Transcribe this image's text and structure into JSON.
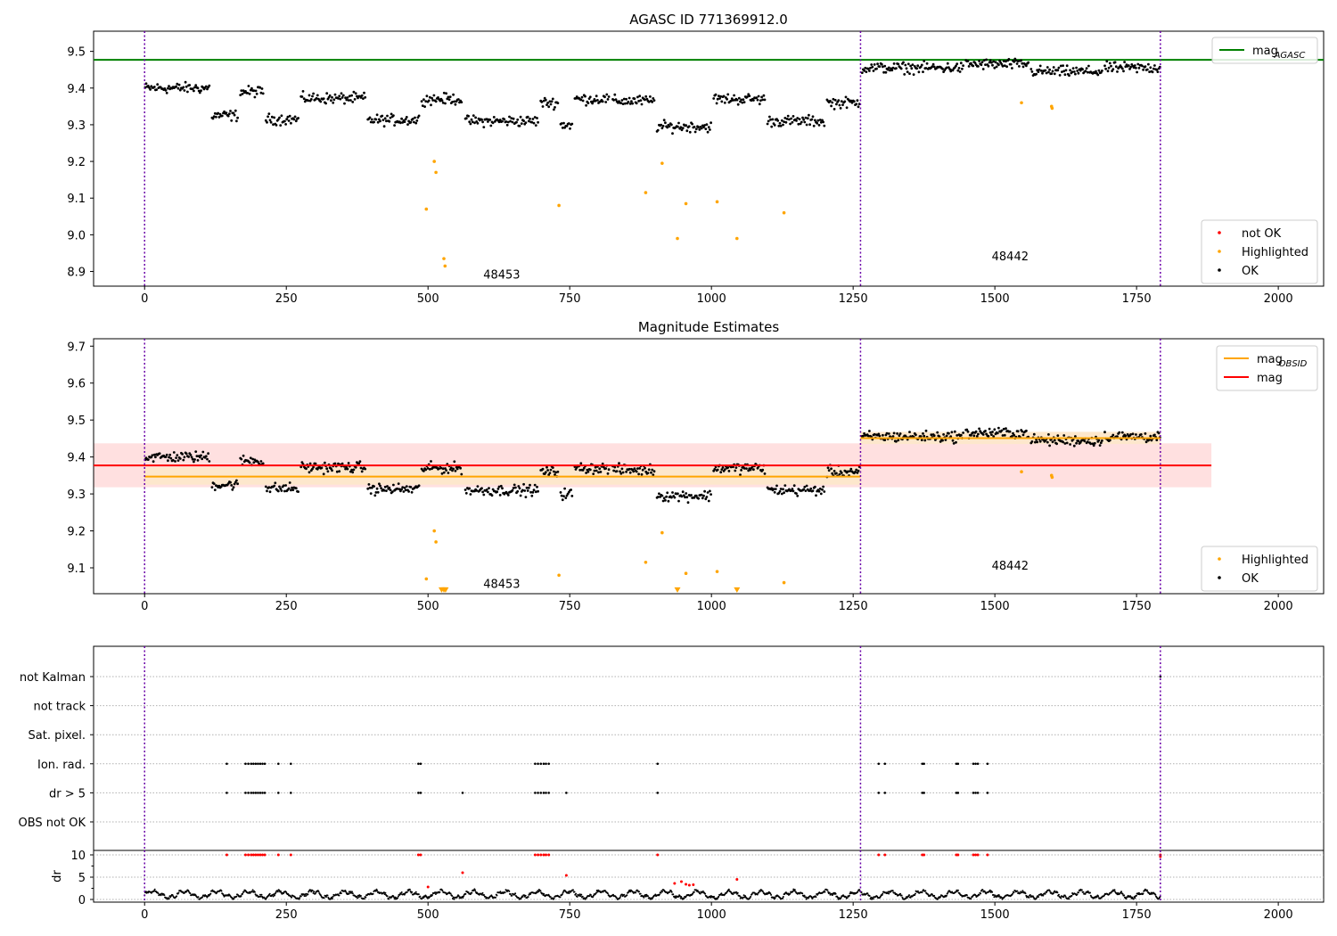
{
  "chart_data": [
    {
      "type": "scatter",
      "title": "AGASC ID 771369912.0",
      "xlabel": "",
      "ylabel": "",
      "xlim": [
        -90,
        2080
      ],
      "ylim": [
        8.86,
        9.555
      ],
      "xticks": [
        0,
        250,
        500,
        750,
        1000,
        1250,
        1500,
        1750,
        2000
      ],
      "yticks": [
        8.9,
        9.0,
        9.1,
        9.2,
        9.3,
        9.4,
        9.5
      ],
      "ytick_labels": [
        "8.9",
        "9.0",
        "9.1",
        "9.2",
        "9.3",
        "9.4",
        "9.5"
      ],
      "vlines": [
        0,
        1263,
        1792
      ],
      "obsid_labels": [
        {
          "x": 630,
          "y": 8.89,
          "text": "48453"
        },
        {
          "x": 1527,
          "y": 8.94,
          "text": "48442"
        }
      ],
      "hlines": [
        {
          "y": 9.477,
          "x_range": [
            -90,
            2080
          ],
          "color": "#008000",
          "name": "mag_AGASC"
        }
      ],
      "legend_top": {
        "placement": "top-right",
        "entries": [
          {
            "kind": "line",
            "color": "#008000",
            "text": "mag",
            "sub": "AGASC"
          }
        ]
      },
      "legend_bottom": {
        "placement": "bottom-right",
        "entries": [
          {
            "kind": "dot",
            "color": "#ff0000",
            "text": "not OK"
          },
          {
            "kind": "dot",
            "color": "#ffa500",
            "text": "Highlighted"
          },
          {
            "kind": "dot",
            "color": "#000000",
            "text": "OK"
          }
        ]
      },
      "series": [
        {
          "name": "OK",
          "color": "#000000",
          "segments": [
            {
              "x": [
                0,
                115
              ],
              "mean": 9.4
            },
            {
              "x": [
                118,
                165
              ],
              "mean": 9.325
            },
            {
              "x": [
                168,
                210
              ],
              "mean": 9.39
            },
            {
              "x": [
                213,
                272
              ],
              "mean": 9.315
            },
            {
              "x": [
                275,
                390
              ],
              "mean": 9.372
            },
            {
              "x": [
                393,
                485
              ],
              "mean": 9.313
            },
            {
              "x": [
                488,
                560
              ],
              "mean": 9.37
            },
            {
              "x": [
                565,
                695
              ],
              "mean": 9.31
            },
            {
              "x": [
                698,
                730
              ],
              "mean": 9.36
            },
            {
              "x": [
                733,
                755
              ],
              "mean": 9.3
            },
            {
              "x": [
                758,
                820
              ],
              "mean": 9.37
            },
            {
              "x": [
                825,
                900
              ],
              "mean": 9.365
            },
            {
              "x": [
                903,
                1000
              ],
              "mean": 9.295
            },
            {
              "x": [
                1003,
                1095
              ],
              "mean": 9.37
            },
            {
              "x": [
                1098,
                1200
              ],
              "mean": 9.31
            },
            {
              "x": [
                1203,
                1262
              ],
              "mean": 9.36
            },
            {
              "x": [
                1265,
                1445
              ],
              "mean": 9.455
            },
            {
              "x": [
                1448,
                1560
              ],
              "mean": 9.465
            },
            {
              "x": [
                1563,
                1690
              ],
              "mean": 9.445
            },
            {
              "x": [
                1693,
                1792
              ],
              "mean": 9.455
            }
          ]
        },
        {
          "name": "Highlighted",
          "color": "#ffa500",
          "x": [
            497,
            511,
            514,
            528,
            530,
            731,
            884,
            913,
            940,
            955,
            1010,
            1045,
            1128,
            1547,
            1600,
            1601
          ],
          "y": [
            9.07,
            9.2,
            9.17,
            8.935,
            8.915,
            9.08,
            9.115,
            9.195,
            8.99,
            9.085,
            9.09,
            8.99,
            9.06,
            9.36,
            9.35,
            9.345
          ]
        }
      ]
    },
    {
      "type": "scatter",
      "title": "Magnitude Estimates",
      "xlabel": "",
      "ylabel": "",
      "xlim": [
        -90,
        2080
      ],
      "ylim": [
        9.03,
        9.72
      ],
      "xticks": [
        0,
        250,
        500,
        750,
        1000,
        1250,
        1500,
        1750,
        2000
      ],
      "yticks": [
        9.1,
        9.2,
        9.3,
        9.4,
        9.5,
        9.6,
        9.7
      ],
      "ytick_labels": [
        "9.1",
        "9.2",
        "9.3",
        "9.4",
        "9.5",
        "9.6",
        "9.7"
      ],
      "vlines": [
        0,
        1263,
        1792
      ],
      "obsid_labels": [
        {
          "x": 630,
          "y": 9.055,
          "text": "48453"
        },
        {
          "x": 1527,
          "y": 9.105,
          "text": "48442"
        }
      ],
      "bands": [
        {
          "y_range": [
            9.318,
            9.437
          ],
          "x_range": [
            -90,
            1882
          ],
          "color": "#ffe0e0"
        },
        {
          "y_range": [
            9.325,
            9.372
          ],
          "x_range": [
            0,
            1263
          ],
          "color": "#fde7cc"
        },
        {
          "y_range": [
            9.435,
            9.468
          ],
          "x_range": [
            1263,
            1792
          ],
          "color": "#fde7cc"
        }
      ],
      "hlines": [
        {
          "y": 9.377,
          "x_range": [
            -90,
            1882
          ],
          "color": "#ff0000",
          "name": "mag"
        },
        {
          "y": 9.347,
          "x_range": [
            0,
            1263
          ],
          "color": "#ffa500",
          "name": "mag_OBSID"
        },
        {
          "y": 9.451,
          "x_range": [
            1263,
            1792
          ],
          "color": "#ffa500",
          "name": "mag_OBSID"
        }
      ],
      "legend_top": {
        "placement": "top-right",
        "entries": [
          {
            "kind": "line",
            "color": "#ffa500",
            "text": "mag",
            "sub": "OBSID"
          },
          {
            "kind": "line",
            "color": "#ff0000",
            "text": "mag",
            "sub": ""
          }
        ]
      },
      "legend_bottom": {
        "placement": "bottom-right",
        "entries": [
          {
            "kind": "dot",
            "color": "#ffa500",
            "text": "Highlighted"
          },
          {
            "kind": "dot",
            "color": "#000000",
            "text": "OK"
          }
        ]
      },
      "series": [
        {
          "name": "OK",
          "color": "#000000",
          "use_panel": 0
        },
        {
          "name": "Highlighted",
          "color": "#ffa500",
          "x": [
            497,
            511,
            514,
            731,
            884,
            913,
            955,
            1010,
            1128,
            1547,
            1600,
            1601
          ],
          "y": [
            9.07,
            9.2,
            9.17,
            9.08,
            9.115,
            9.195,
            9.085,
            9.09,
            9.06,
            9.36,
            9.35,
            9.345
          ]
        },
        {
          "name": "off-scale markers",
          "color": "#ffa500",
          "marker": "triangle-down",
          "x": [
            524,
            528,
            531,
            940,
            1045
          ],
          "y": [
            9.04,
            9.04,
            9.04,
            9.04,
            9.04
          ]
        }
      ]
    },
    {
      "type": "scatter",
      "title": "",
      "xlabel": "",
      "ylabel": "",
      "xlim": [
        -90,
        2080
      ],
      "xticks": [
        0,
        250,
        500,
        750,
        1000,
        1250,
        1500,
        1750,
        2000
      ],
      "vlines": [
        0,
        1263,
        1792
      ],
      "flag_rows": [
        "not Kalman",
        "not track",
        "Sat. pixel.",
        "Ion. rad.",
        "dr > 5",
        "OBS not OK"
      ],
      "flag_points": {
        "Ion. rad.": [
          145,
          178,
          183,
          188,
          192,
          196,
          200,
          204,
          208,
          212,
          236,
          258,
          483,
          487,
          689,
          694,
          699,
          704,
          708,
          713,
          905,
          1295,
          1306,
          1372,
          1375,
          1432,
          1435,
          1462,
          1466,
          1470,
          1487
        ],
        "dr > 5": [
          145,
          178,
          183,
          188,
          192,
          196,
          200,
          204,
          208,
          212,
          236,
          258,
          483,
          487,
          561,
          689,
          694,
          699,
          704,
          708,
          713,
          744,
          905,
          1295,
          1306,
          1372,
          1375,
          1432,
          1435,
          1462,
          1466,
          1470,
          1487
        ],
        "not Kalman": [
          1792
        ]
      },
      "dr": {
        "ylabel": "dr",
        "ylim": [
          -0.6,
          11.0
        ],
        "yticks": [
          0,
          5,
          10
        ],
        "ytick_labels": [
          "0",
          "5",
          "10"
        ],
        "minor_yticks": [
          2.5,
          7.5
        ],
        "red_points": [
          {
            "x": 145,
            "y": 10
          },
          {
            "x": 178,
            "y": 10
          },
          {
            "x": 183,
            "y": 10
          },
          {
            "x": 188,
            "y": 10
          },
          {
            "x": 192,
            "y": 10
          },
          {
            "x": 196,
            "y": 10
          },
          {
            "x": 200,
            "y": 10
          },
          {
            "x": 204,
            "y": 10
          },
          {
            "x": 208,
            "y": 10
          },
          {
            "x": 212,
            "y": 10
          },
          {
            "x": 236,
            "y": 10
          },
          {
            "x": 258,
            "y": 10
          },
          {
            "x": 483,
            "y": 10
          },
          {
            "x": 487,
            "y": 10
          },
          {
            "x": 689,
            "y": 10
          },
          {
            "x": 694,
            "y": 10
          },
          {
            "x": 699,
            "y": 10
          },
          {
            "x": 704,
            "y": 10
          },
          {
            "x": 708,
            "y": 10
          },
          {
            "x": 713,
            "y": 10
          },
          {
            "x": 905,
            "y": 10
          },
          {
            "x": 1295,
            "y": 10
          },
          {
            "x": 1306,
            "y": 10
          },
          {
            "x": 1372,
            "y": 10
          },
          {
            "x": 1375,
            "y": 10
          },
          {
            "x": 1432,
            "y": 10
          },
          {
            "x": 1435,
            "y": 10
          },
          {
            "x": 1462,
            "y": 10
          },
          {
            "x": 1466,
            "y": 10
          },
          {
            "x": 1470,
            "y": 10
          },
          {
            "x": 1487,
            "y": 10
          },
          {
            "x": 1792,
            "y": 10
          },
          {
            "x": 1792,
            "y": 9.6
          },
          {
            "x": 500,
            "y": 2.8
          },
          {
            "x": 561,
            "y": 6.0
          },
          {
            "x": 744,
            "y": 5.4
          },
          {
            "x": 935,
            "y": 3.6
          },
          {
            "x": 947,
            "y": 4.0
          },
          {
            "x": 955,
            "y": 3.4
          },
          {
            "x": 961,
            "y": 3.2
          },
          {
            "x": 968,
            "y": 3.3
          },
          {
            "x": 1045,
            "y": 4.5
          }
        ]
      }
    }
  ]
}
